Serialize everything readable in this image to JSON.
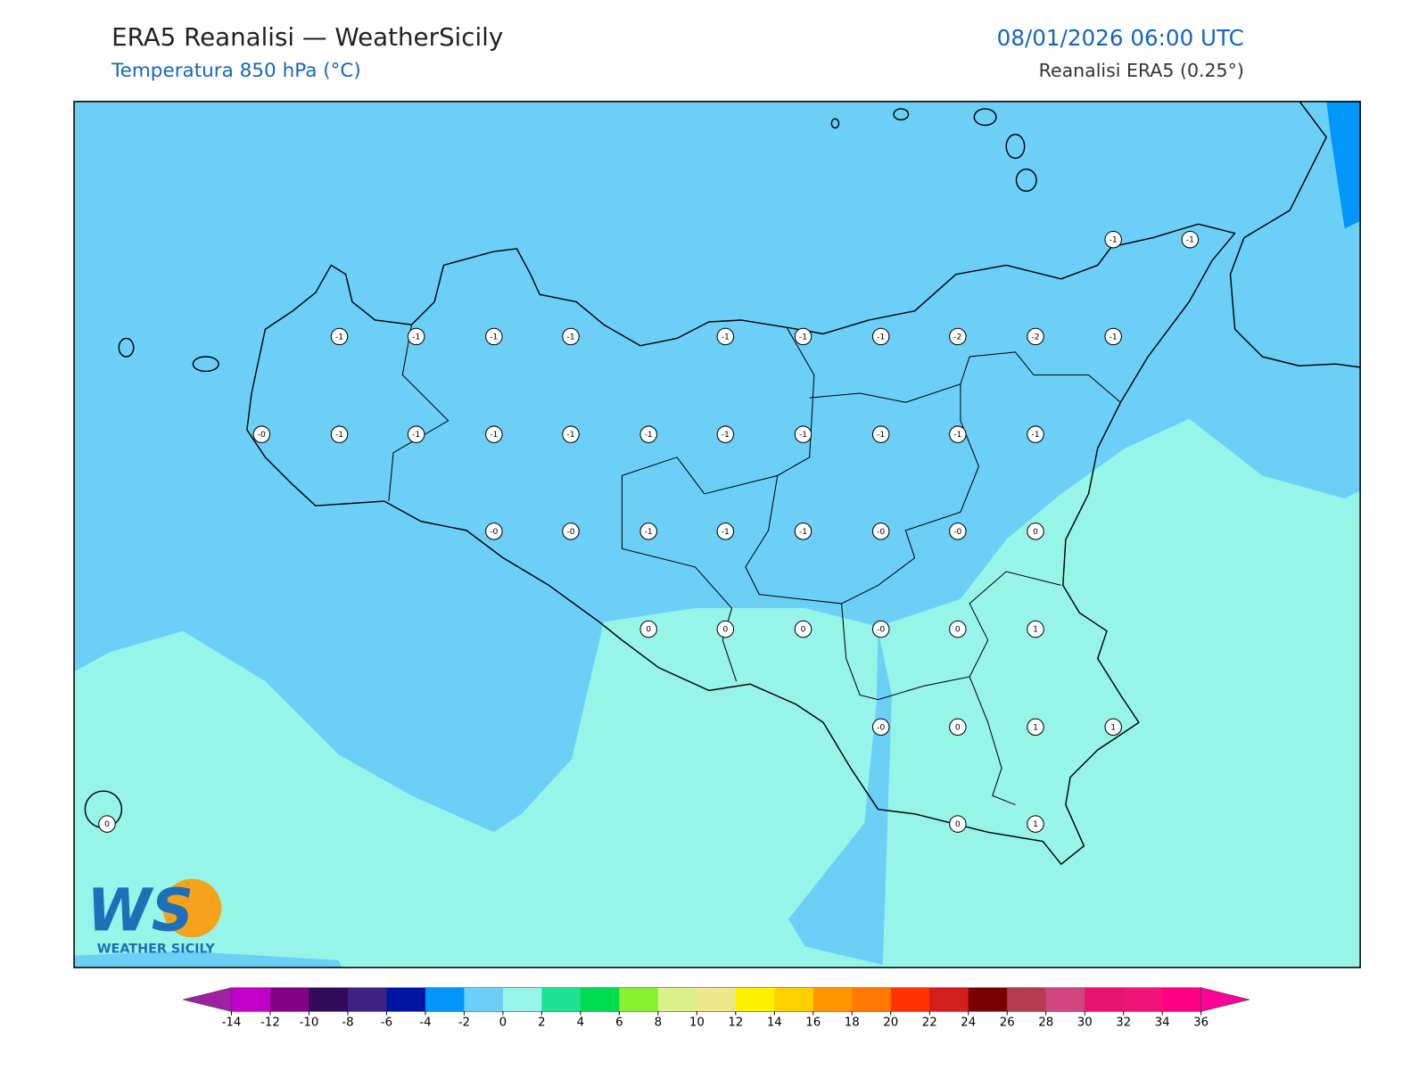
{
  "header": {
    "title": "ERA5 Reanalisi — WeatherSicily",
    "subtitle": "Temperatura 850 hPa (°C)",
    "datetime": "08/01/2026 06:00 UTC",
    "source": "Reanalisi ERA5 (0.25°)"
  },
  "stations": [
    "-1",
    "-1",
    "-1",
    "-1",
    "-1",
    "-1",
    "-1",
    "-1",
    "-1",
    "-2",
    "-2",
    "-1",
    "-0",
    "-1",
    "-1",
    "-1",
    "-1",
    "-1",
    "-1",
    "-1",
    "-1",
    "-1",
    "-1",
    "-0",
    "-0",
    "-1",
    "-1",
    "-1",
    "-0",
    "-0",
    "0",
    "0",
    "0",
    "0",
    "-0",
    "0",
    "1",
    "-0",
    "0",
    "1",
    "1",
    "0",
    "0",
    "1"
  ],
  "logo": {
    "mark": "WS",
    "text": "WEATHER SICILY"
  },
  "colorbar": {
    "ticks": [
      -14,
      -12,
      -10,
      -8,
      -6,
      -4,
      -2,
      0,
      2,
      4,
      6,
      8,
      10,
      12,
      14,
      16,
      18,
      20,
      22,
      24,
      26,
      28,
      30,
      32,
      34,
      36
    ],
    "colors": [
      "#a01ea0",
      "#c000c8",
      "#820082",
      "#320a5a",
      "#3c2282",
      "#0014a0",
      "#0096fa",
      "#6ccff6",
      "#96f4e8",
      "#1ee196",
      "#00dc50",
      "#8cf032",
      "#dcf08c",
      "#f0e68c",
      "#fff000",
      "#ffd000",
      "#ff9600",
      "#ff7800",
      "#ff3200",
      "#d21e1e",
      "#780000",
      "#b43c50",
      "#d24680",
      "#e6146e",
      "#f01478",
      "#ff0082",
      "#ff0096"
    ]
  }
}
